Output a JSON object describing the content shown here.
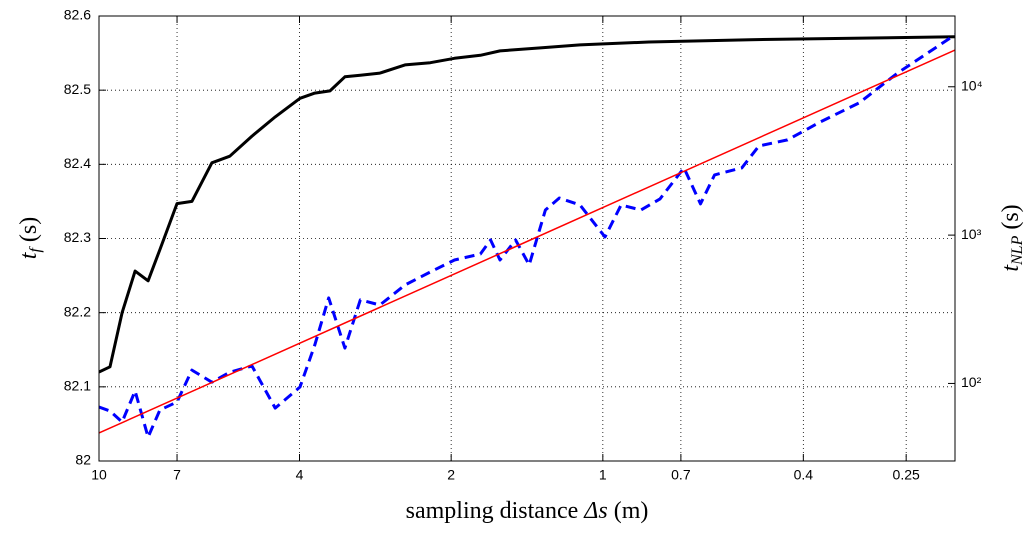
{
  "chart_data": {
    "type": "line",
    "xlabel": {
      "text": "sampling distance",
      "symbol": "Δs",
      "unit": "(m)"
    },
    "ylabel": {
      "symbol": "t",
      "subscript": "f",
      "unit": "(s)"
    },
    "y2label": {
      "symbol": "t",
      "subscript": "NLP",
      "unit": "(s)"
    },
    "xscale": "log",
    "xreversed": true,
    "y2scale": "log",
    "grid": true,
    "xlim": [
      10,
      0.2
    ],
    "xticks": [
      10,
      7,
      4,
      2,
      1,
      0.7,
      0.4,
      0.25
    ],
    "ylim": [
      82,
      82.6
    ],
    "yticks": [
      82,
      82.1,
      82.2,
      82.3,
      82.4,
      82.5,
      82.6
    ],
    "y2lim": [
      30,
      30000
    ],
    "y2ticks": [
      {
        "value": 100,
        "label": "10²"
      },
      {
        "value": 1000,
        "label": "10³"
      },
      {
        "value": 10000,
        "label": "10⁴"
      }
    ],
    "series": [
      {
        "color": "#000000",
        "dash": "solid",
        "width": 3,
        "x": [
          10,
          9.51,
          9.0,
          8.48,
          7.99,
          7.57,
          7.0,
          6.54,
          5.97,
          5.5,
          4.97,
          4.47,
          3.99,
          3.73,
          3.48,
          3.25,
          3.03,
          2.77,
          2.47,
          2.2,
          1.97,
          1.75,
          1.6,
          1.33,
          1.11,
          0.81,
          0.51,
          0.2
        ],
        "values": [
          82.12,
          82.127,
          82.2,
          82.256,
          82.243,
          82.285,
          82.347,
          82.35,
          82.402,
          82.411,
          82.438,
          82.464,
          82.489,
          82.496,
          82.499,
          82.518,
          82.52,
          82.523,
          82.534,
          82.537,
          82.543,
          82.547,
          82.553,
          82.557,
          82.561,
          82.565,
          82.568,
          82.572
        ]
      },
      {
        "color": "#0000ff",
        "dash": "dashed",
        "width": 3,
        "axis": "y2",
        "x": [
          10,
          9.51,
          9.0,
          8.48,
          7.99,
          7.57,
          7.0,
          6.54,
          5.97,
          5.5,
          4.97,
          4.47,
          3.99,
          3.73,
          3.5,
          3.25,
          3.03,
          2.77,
          2.47,
          2.2,
          1.97,
          1.75,
          1.67,
          1.6,
          1.49,
          1.4,
          1.3,
          1.22,
          1.11,
          0.99,
          0.92,
          0.84,
          0.77,
          0.69,
          0.64,
          0.6,
          0.53,
          0.49,
          0.43,
          0.37,
          0.31,
          0.26,
          0.2
        ],
        "values": [
          69.4,
          65.2,
          55.0,
          88.9,
          43.5,
          66.2,
          75.0,
          123,
          102,
          119,
          131,
          68.2,
          94.6,
          182,
          377,
          173,
          366,
          338,
          461,
          564,
          679,
          746,
          927,
          679,
          927,
          630,
          1476,
          1778,
          1596,
          971,
          1596,
          1476,
          1754,
          2838,
          1622,
          2547,
          2838,
          3990,
          4385,
          5794,
          7780,
          12390,
          22390
        ]
      },
      {
        "color": "#ff0000",
        "dash": "solid",
        "width": 1.5,
        "axis": "y2",
        "x": [
          10,
          0.2
        ],
        "values": [
          46.3,
          17700
        ]
      }
    ]
  }
}
